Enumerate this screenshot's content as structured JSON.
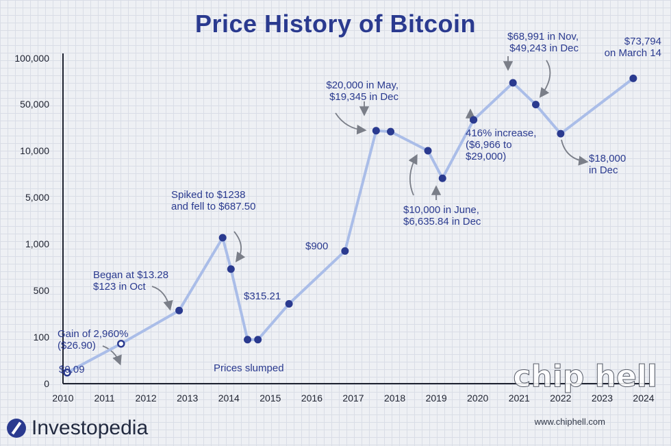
{
  "chart_data": {
    "type": "line",
    "title": "Price History of Bitcoin",
    "xlabel": "",
    "ylabel": "",
    "x_ticks": [
      "2010",
      "2011",
      "2012",
      "2013",
      "2014",
      "2015",
      "2016",
      "2017",
      "2018",
      "2019",
      "2020",
      "2021",
      "2022",
      "2023",
      "2024"
    ],
    "y_ticks": [
      "0",
      "100",
      "500",
      "1,000",
      "5,000",
      "10,000",
      "50,000",
      "100,000"
    ],
    "y_scale": "log (uneven tick spacing)",
    "series": [
      {
        "color": "#aabde8",
        "marker_color": "#2a3a8f",
        "points": [
          {
            "x": 2010.1,
            "y": 0.09
          },
          {
            "x": 2011.4,
            "y": 26.9
          },
          {
            "x": 2012.8,
            "y": 250
          },
          {
            "x": 2013.85,
            "y": 1238
          },
          {
            "x": 2014.05,
            "y": 687.5
          },
          {
            "x": 2014.45,
            "y": 60
          },
          {
            "x": 2014.7,
            "y": 60
          },
          {
            "x": 2015.45,
            "y": 315.21
          },
          {
            "x": 2016.8,
            "y": 900
          },
          {
            "x": 2017.55,
            "y": 20000
          },
          {
            "x": 2017.9,
            "y": 19345
          },
          {
            "x": 2018.8,
            "y": 10000
          },
          {
            "x": 2019.15,
            "y": 6635.84
          },
          {
            "x": 2019.9,
            "y": 29000
          },
          {
            "x": 2020.85,
            "y": 68991
          },
          {
            "x": 2021.4,
            "y": 49243
          },
          {
            "x": 2022.0,
            "y": 18000
          },
          {
            "x": 2023.75,
            "y": 73794
          }
        ]
      }
    ],
    "annotations": [
      {
        "lines": [
          "$0.09"
        ]
      },
      {
        "lines": [
          "Gain of 2,960%",
          "($26.90)"
        ]
      },
      {
        "lines": [
          "Began at $13.28",
          "$123 in Oct"
        ]
      },
      {
        "lines": [
          "Spiked to $1238",
          "and fell to $687.50"
        ]
      },
      {
        "lines": [
          "Prices slumped"
        ]
      },
      {
        "lines": [
          "$315.21"
        ]
      },
      {
        "lines": [
          "$900"
        ]
      },
      {
        "lines": [
          "$20,000 in May,",
          "$19,345 in Dec"
        ]
      },
      {
        "lines": [
          "$10,000 in June,",
          "$6,635.84 in Dec"
        ]
      },
      {
        "lines": [
          "416% increase,",
          "($6,966 to",
          "$29,000)"
        ]
      },
      {
        "lines": [
          "$68,991 in Nov,",
          "$49,243 in Dec"
        ]
      },
      {
        "lines": [
          "$18,000",
          "in Dec"
        ]
      },
      {
        "lines": [
          "$73,794",
          "on March 14"
        ]
      }
    ],
    "grid": true,
    "legend": "none"
  },
  "branding": {
    "logo_text": "Investopedia",
    "watermark_logo": "chip hell",
    "watermark_url": "www.chiphell.com"
  }
}
